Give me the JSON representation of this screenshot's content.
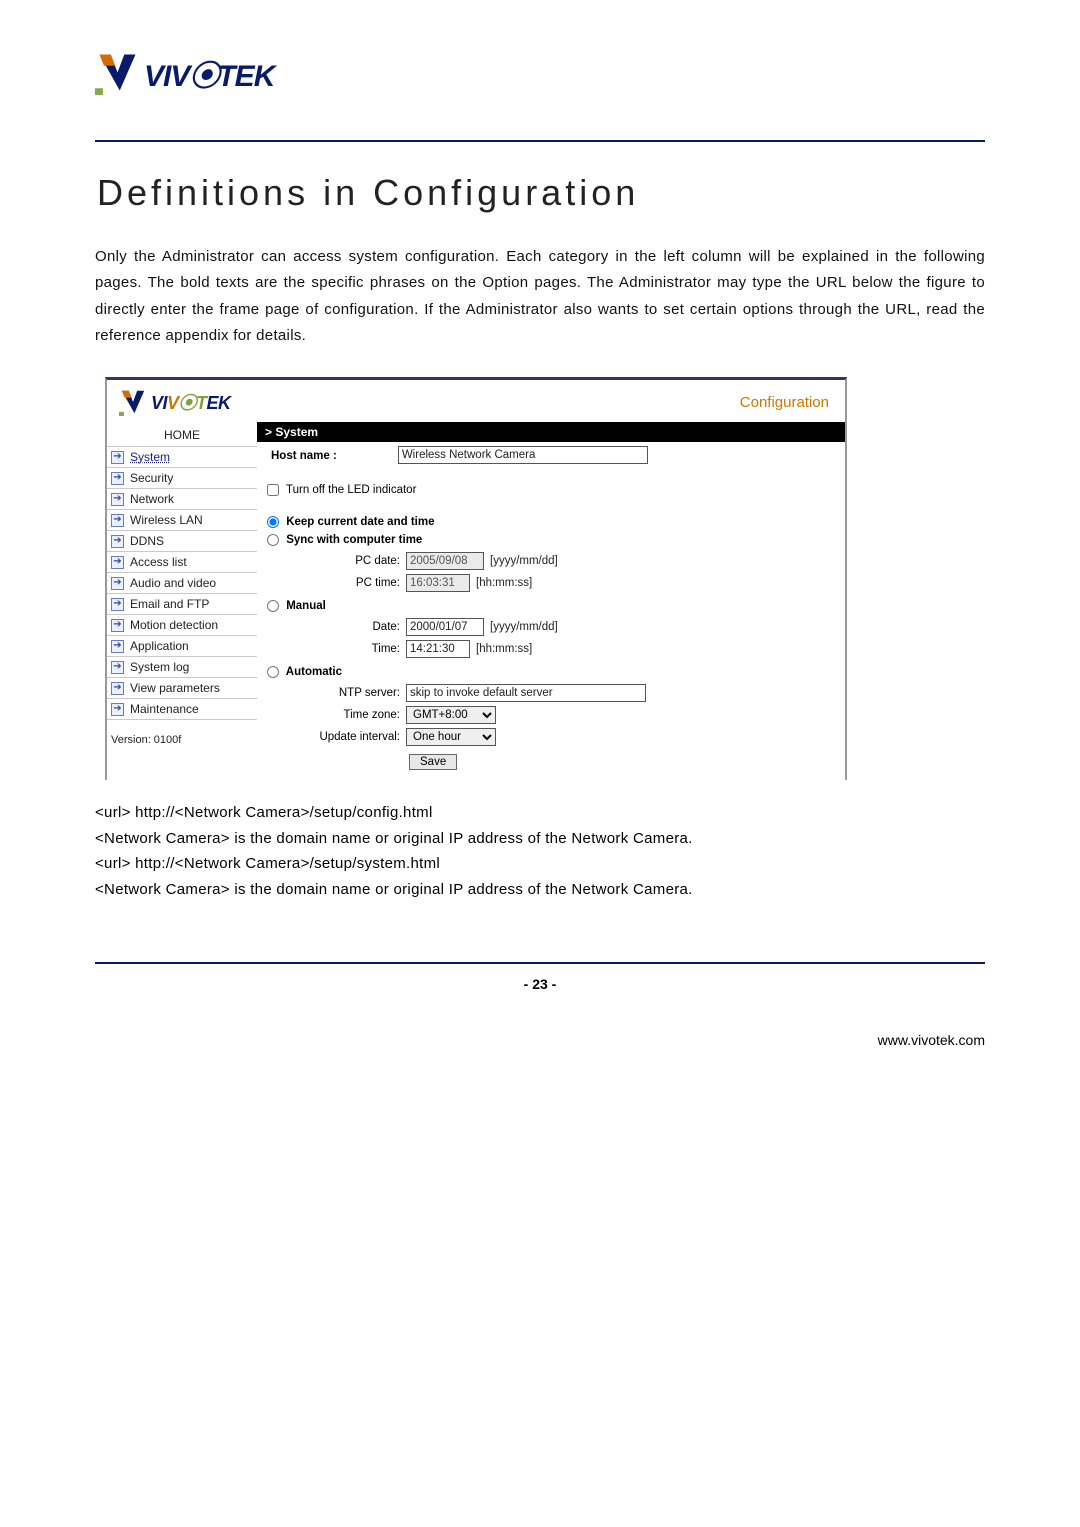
{
  "heading": "Definitions in Configuration",
  "intro": "Only the Administrator can access system configuration. Each category in the left column will be explained in the following pages. The bold texts are the specific phrases on the Option pages. The Administrator may type the URL below the figure to directly enter the frame page of configuration. If the Administrator also wants to set certain options through the URL, read the reference appendix for details.",
  "config": {
    "title": "Configuration",
    "home": "HOME",
    "nav": [
      {
        "label": "System"
      },
      {
        "label": "Security"
      },
      {
        "label": "Network"
      },
      {
        "label": "Wireless LAN"
      },
      {
        "label": "DDNS"
      },
      {
        "label": "Access list"
      },
      {
        "label": "Audio and video"
      },
      {
        "label": "Email and FTP"
      },
      {
        "label": "Motion detection"
      },
      {
        "label": "Application"
      },
      {
        "label": "System log"
      },
      {
        "label": "View parameters"
      },
      {
        "label": "Maintenance"
      }
    ],
    "version": "Version: 0100f",
    "system_bar": "> System",
    "hostname_label": "Host name :",
    "hostname_value": "Wireless Network Camera",
    "led_label": "Turn off the LED indicator",
    "radio_keep": "Keep current date and time",
    "radio_sync": "Sync with computer time",
    "pc_date_label": "PC date:",
    "pc_date_value": "2005/09/08",
    "pc_date_hint": "[yyyy/mm/dd]",
    "pc_time_label": "PC time:",
    "pc_time_value": "16:03:31",
    "pc_time_hint": "[hh:mm:ss]",
    "radio_manual": "Manual",
    "man_date_label": "Date:",
    "man_date_value": "2000/01/07",
    "man_date_hint": "[yyyy/mm/dd]",
    "man_time_label": "Time:",
    "man_time_value": "14:21:30",
    "man_time_hint": "[hh:mm:ss]",
    "radio_auto": "Automatic",
    "ntp_label": "NTP server:",
    "ntp_value": "skip to invoke default server",
    "tz_label": "Time zone:",
    "tz_value": "GMT+8:00",
    "upd_label": "Update interval:",
    "upd_value": "One hour",
    "save": "Save"
  },
  "urls": {
    "l1": "<url> http://<Network Camera>/setup/config.html",
    "l2": "<Network Camera> is the domain name or original IP address of the Network Camera.",
    "l3": "<url> http://<Network Camera>/setup/system.html",
    "l4": "<Network Camera> is the domain name or original IP address of the Network Camera."
  },
  "page_number": "- 23 -",
  "site": "www.vivotek.com",
  "logo_svg_mark": "Y",
  "colors": {
    "brand_blue": "#0a1a6b",
    "brand_orange": "#c87800"
  }
}
